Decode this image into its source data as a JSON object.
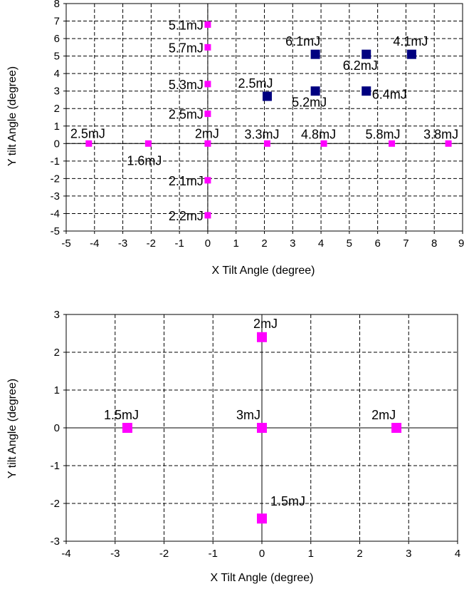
{
  "chart_data": [
    {
      "type": "scatter",
      "xlabel": "X Tilt Angle (degree)",
      "ylabel": "Y tilt Angle (degree)",
      "xlim": [
        -5,
        9
      ],
      "ylim": [
        -5,
        8
      ],
      "xticks": [
        "-5",
        "-4",
        "-3",
        "-2",
        "-1",
        "0",
        "1",
        "2",
        "3",
        "4",
        "5",
        "6",
        "7",
        "8",
        "9"
      ],
      "yticks": [
        "-5",
        "-4",
        "-3",
        "-2",
        "-1",
        "0",
        "1",
        "2",
        "3",
        "4",
        "5",
        "6",
        "7",
        "8"
      ],
      "grid": true,
      "grid_style": "dashed",
      "legend": "none",
      "series": [
        {
          "color": "#ff00ff",
          "points": [
            {
              "x": 0,
              "y": 6.8,
              "label": "5.1mJ"
            },
            {
              "x": 0,
              "y": 5.5,
              "label": "5.7mJ"
            },
            {
              "x": 0,
              "y": 3.4,
              "label": "5.3mJ"
            },
            {
              "x": 0,
              "y": 1.7,
              "label": "2.5mJ"
            },
            {
              "x": -4.2,
              "y": 0,
              "label": "2.5mJ"
            },
            {
              "x": -2.1,
              "y": 0,
              "label": "1.6mJ"
            },
            {
              "x": 0,
              "y": 0,
              "label": "2mJ"
            },
            {
              "x": 2.1,
              "y": 0,
              "label": "3.3mJ"
            },
            {
              "x": 4.1,
              "y": 0,
              "label": "4.8mJ"
            },
            {
              "x": 6.5,
              "y": 0,
              "label": "5.8mJ"
            },
            {
              "x": 8.5,
              "y": 0,
              "label": "3.8mJ"
            },
            {
              "x": 0,
              "y": -2.1,
              "label": "2.1mJ"
            },
            {
              "x": 0,
              "y": -4.1,
              "label": "2.2mJ"
            }
          ]
        },
        {
          "color": "#000080",
          "points": [
            {
              "x": 2.1,
              "y": 2.7,
              "label": "2.5mJ"
            },
            {
              "x": 3.8,
              "y": 5.1,
              "label": "6.1mJ"
            },
            {
              "x": 5.6,
              "y": 5.1,
              "label": "6.2mJ"
            },
            {
              "x": 7.2,
              "y": 5.1,
              "label": "4.1mJ"
            },
            {
              "x": 3.8,
              "y": 3.0,
              "label": "5.2mJ"
            },
            {
              "x": 5.6,
              "y": 3.0,
              "label": "6.4mJ"
            }
          ]
        }
      ]
    },
    {
      "type": "scatter",
      "xlabel": "X Tilt Angle (degree)",
      "ylabel": "Y tilt Angle (degree)",
      "xlim": [
        -4,
        4
      ],
      "ylim": [
        -3,
        3
      ],
      "xticks": [
        "-4",
        "-3",
        "-2",
        "-1",
        "0",
        "1",
        "2",
        "3",
        "4"
      ],
      "yticks": [
        "-3",
        "-2",
        "-1",
        "0",
        "1",
        "2",
        "3"
      ],
      "grid": true,
      "grid_style": "dashed",
      "legend": "none",
      "series": [
        {
          "color": "#ff00ff",
          "points": [
            {
              "x": 0,
              "y": 2.4,
              "label": "2mJ"
            },
            {
              "x": -2.75,
              "y": 0,
              "label": "1.5mJ"
            },
            {
              "x": 0,
              "y": 0,
              "label": "3mJ"
            },
            {
              "x": 2.75,
              "y": 0,
              "label": "2mJ"
            },
            {
              "x": 0,
              "y": -2.4,
              "label": "1.5mJ"
            }
          ]
        }
      ]
    }
  ]
}
